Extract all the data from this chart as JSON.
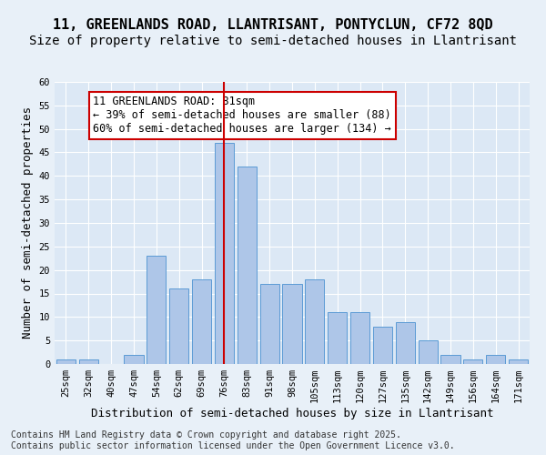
{
  "title_line1": "11, GREENLANDS ROAD, LLANTRISANT, PONTYCLUN, CF72 8QD",
  "title_line2": "Size of property relative to semi-detached houses in Llantrisant",
  "xlabel": "Distribution of semi-detached houses by size in Llantrisant",
  "ylabel": "Number of semi-detached properties",
  "bar_labels": [
    "25sqm",
    "32sqm",
    "40sqm",
    "47sqm",
    "54sqm",
    "62sqm",
    "69sqm",
    "76sqm",
    "83sqm",
    "91sqm",
    "98sqm",
    "105sqm",
    "113sqm",
    "120sqm",
    "127sqm",
    "135sqm",
    "142sqm",
    "149sqm",
    "156sqm",
    "164sqm",
    "171sqm"
  ],
  "bar_values": [
    1,
    1,
    0,
    2,
    23,
    16,
    18,
    47,
    42,
    17,
    17,
    18,
    11,
    11,
    8,
    9,
    5,
    2,
    1,
    2,
    1
  ],
  "bar_color": "#aec6e8",
  "bar_edge_color": "#5b9bd5",
  "vline_x": 7,
  "vline_color": "#cc0000",
  "annotation_text": "11 GREENLANDS ROAD: 81sqm\n← 39% of semi-detached houses are smaller (88)\n60% of semi-detached houses are larger (134) →",
  "annotation_box_facecolor": "#ffffff",
  "annotation_box_edgecolor": "#cc0000",
  "ylim": [
    0,
    60
  ],
  "yticks": [
    0,
    5,
    10,
    15,
    20,
    25,
    30,
    35,
    40,
    45,
    50,
    55,
    60
  ],
  "fig_bg_color": "#e8f0f8",
  "plot_bg_color": "#dce8f5",
  "footer_text": "Contains HM Land Registry data © Crown copyright and database right 2025.\nContains public sector information licensed under the Open Government Licence v3.0.",
  "title_fontsize": 11,
  "subtitle_fontsize": 10,
  "axis_label_fontsize": 9,
  "tick_fontsize": 7.5,
  "annotation_fontsize": 8.5,
  "footer_fontsize": 7
}
